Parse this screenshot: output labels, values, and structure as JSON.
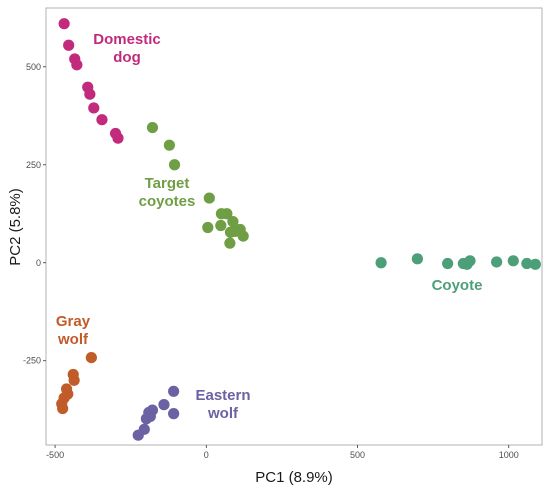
{
  "chart_data": {
    "type": "scatter",
    "title": "",
    "xlabel": "PC1 (8.9%)",
    "ylabel": "PC2 (5.8%)",
    "xlim": [
      -530,
      1110
    ],
    "ylim": [
      -465,
      650
    ],
    "xticks": [
      -500,
      0,
      500,
      1000
    ],
    "yticks": [
      -250,
      0,
      250,
      500
    ],
    "grid": false,
    "legend": "none",
    "series": [
      {
        "name": "Domestic dog",
        "label_lines": [
          "Domestic",
          "dog"
        ],
        "color": "#c22a7d",
        "points": [
          [
            -470,
            610
          ],
          [
            -455,
            555
          ],
          [
            -435,
            520
          ],
          [
            -428,
            505
          ],
          [
            -392,
            448
          ],
          [
            -385,
            430
          ],
          [
            -372,
            395
          ],
          [
            -345,
            365
          ],
          [
            -300,
            330
          ],
          [
            -292,
            318
          ]
        ]
      },
      {
        "name": "Target coyotes",
        "label_lines": [
          "Target",
          "coyotes"
        ],
        "color": "#6f9e45",
        "points": [
          [
            -178,
            345
          ],
          [
            -122,
            300
          ],
          [
            -105,
            250
          ],
          [
            10,
            165
          ],
          [
            50,
            125
          ],
          [
            68,
            125
          ],
          [
            88,
            105
          ],
          [
            95,
            80
          ],
          [
            112,
            85
          ],
          [
            122,
            68
          ],
          [
            78,
            50
          ],
          [
            5,
            90
          ],
          [
            48,
            95
          ],
          [
            80,
            78
          ]
        ]
      },
      {
        "name": "Coyote",
        "label_lines": [
          "Coyote"
        ],
        "color": "#4c9f78",
        "points": [
          [
            578,
            0
          ],
          [
            698,
            10
          ],
          [
            798,
            -2
          ],
          [
            850,
            -2
          ],
          [
            872,
            5
          ],
          [
            862,
            -4
          ],
          [
            960,
            2
          ],
          [
            1015,
            5
          ],
          [
            1060,
            -2
          ],
          [
            1088,
            -4
          ]
        ]
      },
      {
        "name": "Gray wolf",
        "label_lines": [
          "Gray",
          "wolf"
        ],
        "color": "#c05c2a",
        "points": [
          [
            -380,
            -242
          ],
          [
            -440,
            -285
          ],
          [
            -437,
            -300
          ],
          [
            -462,
            -322
          ],
          [
            -458,
            -335
          ],
          [
            -470,
            -345
          ],
          [
            -478,
            -360
          ],
          [
            -475,
            -372
          ]
        ]
      },
      {
        "name": "Eastern wolf",
        "label_lines": [
          "Eastern",
          "wolf"
        ],
        "color": "#6b62a3",
        "points": [
          [
            -108,
            -328
          ],
          [
            -140,
            -362
          ],
          [
            -108,
            -385
          ],
          [
            -178,
            -376
          ],
          [
            -190,
            -382
          ],
          [
            -198,
            -398
          ],
          [
            -205,
            -425
          ],
          [
            -225,
            -440
          ],
          [
            -185,
            -392
          ]
        ]
      }
    ]
  }
}
